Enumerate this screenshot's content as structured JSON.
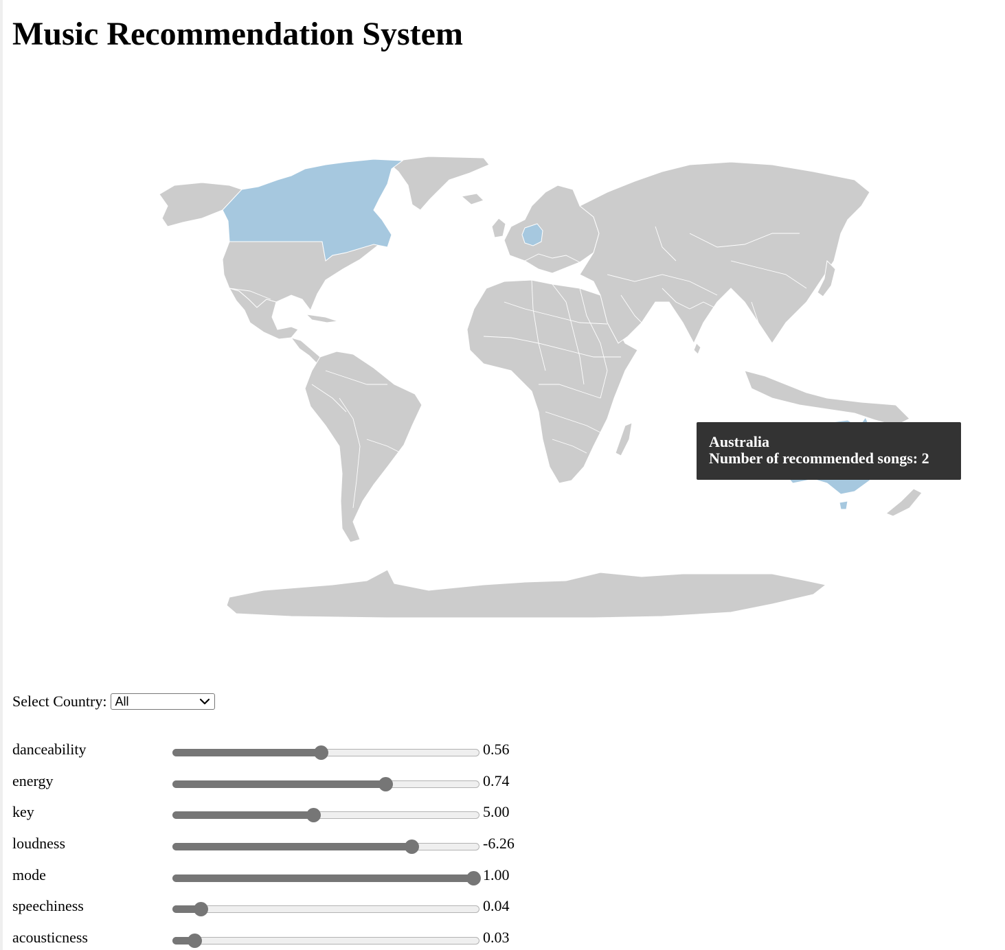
{
  "page": {
    "title": "Music Recommendation System"
  },
  "map": {
    "land_color": "#cccccc",
    "highlight_color": "#a6c8df",
    "highlighted_countries": [
      "Canada",
      "Germany",
      "Australia"
    ],
    "tooltip": {
      "country": "Australia",
      "text": "Number of recommended songs: 2",
      "background": "#333333"
    }
  },
  "controls": {
    "country_label": "Select Country:",
    "country_selected": "All",
    "sliders": [
      {
        "name": "danceability",
        "value": "0.56",
        "fraction": 0.48
      },
      {
        "name": "energy",
        "value": "0.74",
        "fraction": 0.7
      },
      {
        "name": "key",
        "value": "5.00",
        "fraction": 0.455
      },
      {
        "name": "loudness",
        "value": "-6.26",
        "fraction": 0.79
      },
      {
        "name": "mode",
        "value": "1.00",
        "fraction": 1.0
      },
      {
        "name": "speechiness",
        "value": "0.04",
        "fraction": 0.07
      },
      {
        "name": "acousticness",
        "value": "0.03",
        "fraction": 0.05
      }
    ]
  }
}
